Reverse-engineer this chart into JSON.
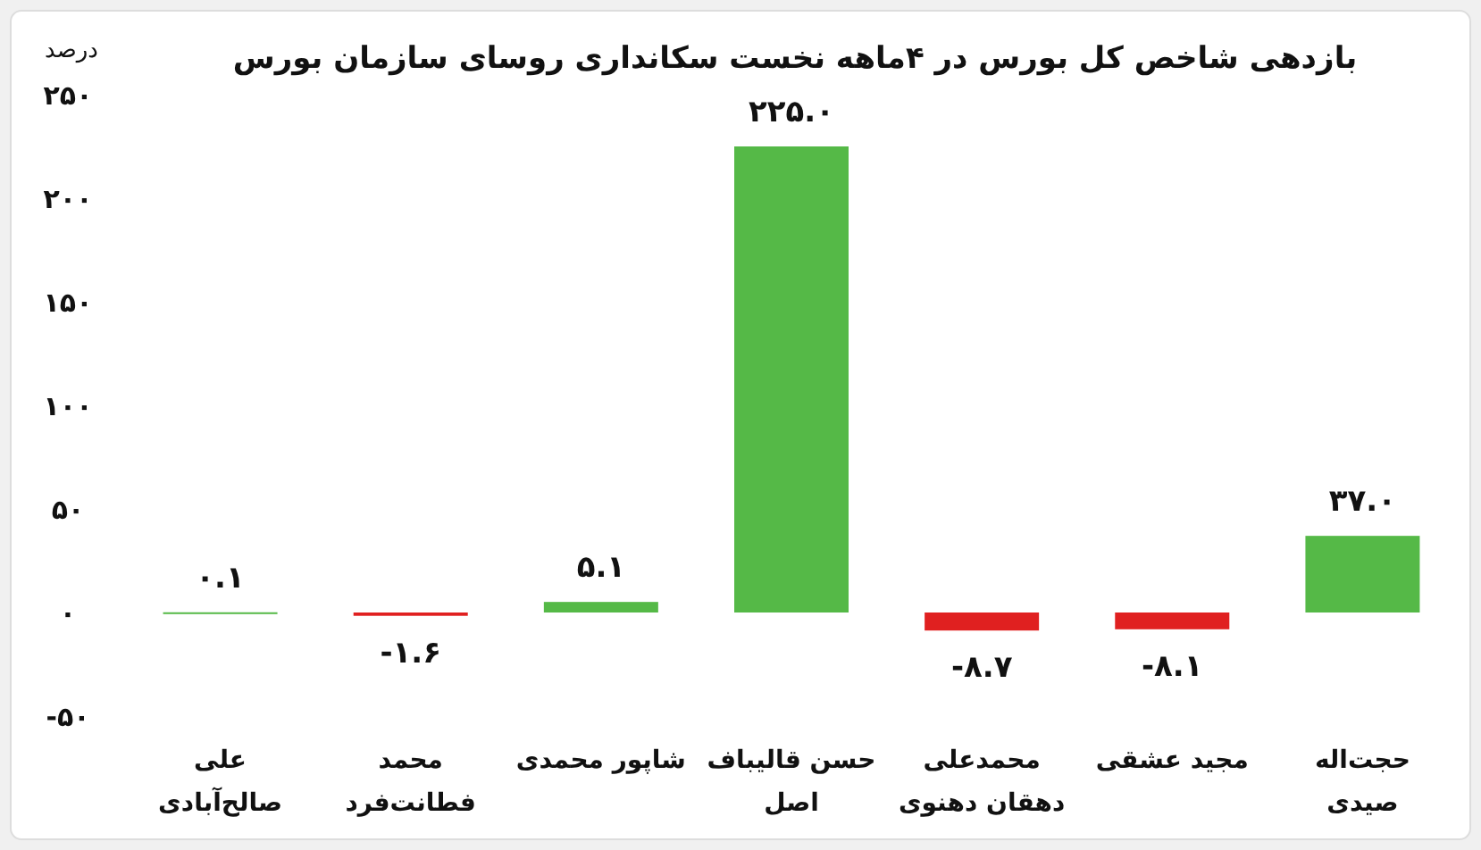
{
  "chart_data": {
    "type": "bar",
    "title": "بازدهی شاخص کل بورس در ۴ماهه نخست سکانداری روسای سازمان بورس",
    "ylabel": "درصد",
    "categories": [
      "علی\nصالح‌آبادی",
      "محمد\nفطانت‌فرد",
      "شاپور محمدی",
      "حسن قالیباف\nاصل",
      "محمدعلی\nدهقان دهنوی",
      "مجید عشقی",
      "حجت‌اله\nصیدی"
    ],
    "values": [
      0.1,
      -1.6,
      5.1,
      225.0,
      -8.7,
      -8.1,
      37.0
    ],
    "colors": [
      "#55b947",
      "#e02020",
      "#55b947",
      "#55b947",
      "#e02020",
      "#e02020",
      "#55b947"
    ],
    "value_labels": [
      "۰.۱",
      "-۱.۶",
      "۵.۱",
      "۲۲۵.۰",
      "-۸.۷",
      "-۸.۱",
      "۳۷.۰"
    ],
    "ylim": [
      -50,
      250
    ],
    "yticks": [
      {
        "value": -50,
        "label": "-۵۰"
      },
      {
        "value": 0,
        "label": "۰"
      },
      {
        "value": 50,
        "label": "۵۰"
      },
      {
        "value": 100,
        "label": "۱۰۰"
      },
      {
        "value": 150,
        "label": "۱۵۰"
      },
      {
        "value": 200,
        "label": "۲۰۰"
      },
      {
        "value": 250,
        "label": "۲۵۰"
      }
    ],
    "grid": false
  }
}
